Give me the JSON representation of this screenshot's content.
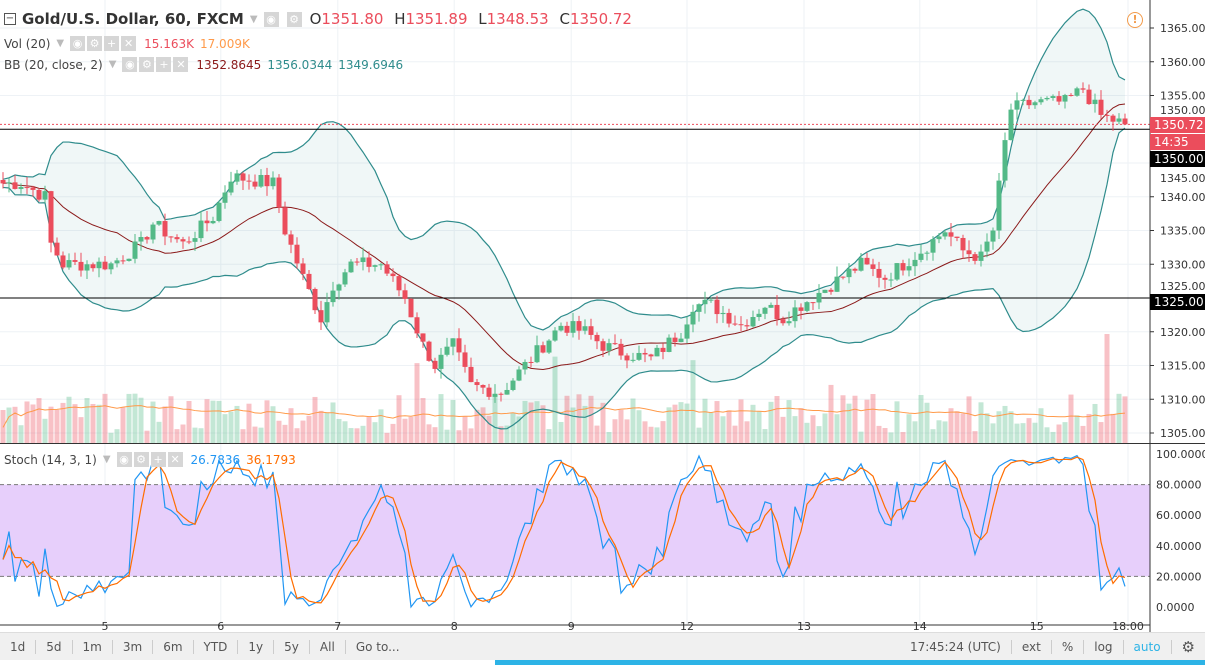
{
  "symbol": {
    "title": "Gold/U.S. Dollar, 60, FXCM",
    "open_label": "O",
    "open": "1351.80",
    "high_label": "H",
    "high": "1351.89",
    "low_label": "L",
    "low": "1348.53",
    "close_label": "C",
    "close": "1350.72"
  },
  "indicators": {
    "vol": {
      "label": "Vol (20)",
      "v1": "15.163K",
      "v2": "17.009K"
    },
    "bb": {
      "label": "BB (20, close, 2)",
      "basis": "1352.8645",
      "upper": "1356.0344",
      "lower": "1349.6946"
    },
    "stoch": {
      "label": "Stoch (14, 3, 1)",
      "k": "26.7836",
      "d": "36.1793"
    }
  },
  "price_axis": {
    "ticks": [
      "1365.00",
      "1360.00",
      "1355.00",
      "1350.00",
      "1345.00",
      "1340.00",
      "1335.00",
      "1330.00",
      "1325.00",
      "1320.00",
      "1315.00",
      "1310.00",
      "1305.00"
    ],
    "values": [
      1365,
      1360,
      1355,
      1350,
      1345,
      1340,
      1335,
      1330,
      1325,
      1320,
      1315,
      1310,
      1305
    ],
    "current_price": "1350.72",
    "countdown": "14:35",
    "hline1": "1350.00",
    "hline2": "1325.00"
  },
  "stoch_axis": {
    "ticks": [
      "100.0000",
      "80.0000",
      "60.0000",
      "40.0000",
      "20.0000",
      "0.0000"
    ],
    "values": [
      100,
      80,
      60,
      40,
      20,
      0
    ]
  },
  "time_axis": [
    {
      "label": "5",
      "bar": 17
    },
    {
      "label": "6",
      "bar": 36.3
    },
    {
      "label": "7",
      "bar": 55.8
    },
    {
      "label": "8",
      "bar": 75.2
    },
    {
      "label": "9",
      "bar": 94.7
    },
    {
      "label": "12",
      "bar": 114
    },
    {
      "label": "13",
      "bar": 133.5
    },
    {
      "label": "14",
      "bar": 152.8
    },
    {
      "label": "15",
      "bar": 172.3
    },
    {
      "label": "18:00",
      "bar": 187.5
    }
  ],
  "price_anchors": [
    [
      0,
      1342
    ],
    [
      3,
      1342
    ],
    [
      7,
      1340
    ],
    [
      8,
      1333
    ],
    [
      10,
      1330
    ],
    [
      18,
      1330
    ],
    [
      23,
      1333
    ],
    [
      25,
      1336
    ],
    [
      30,
      1333
    ],
    [
      35,
      1337
    ],
    [
      38,
      1343
    ],
    [
      45,
      1342
    ],
    [
      47,
      1335
    ],
    [
      50,
      1328
    ],
    [
      53,
      1322
    ],
    [
      55,
      1327
    ],
    [
      58,
      1330
    ],
    [
      63,
      1330
    ],
    [
      67,
      1325
    ],
    [
      70,
      1318
    ],
    [
      72,
      1315
    ],
    [
      75,
      1318
    ],
    [
      78,
      1312
    ],
    [
      83,
      1311
    ],
    [
      87,
      1315
    ],
    [
      90,
      1318
    ],
    [
      93,
      1321
    ],
    [
      97,
      1320
    ],
    [
      100,
      1318
    ],
    [
      103,
      1317
    ],
    [
      108,
      1316
    ],
    [
      113,
      1320
    ],
    [
      115,
      1324
    ],
    [
      118,
      1324
    ],
    [
      123,
      1321
    ],
    [
      127,
      1324
    ],
    [
      130,
      1322
    ],
    [
      133,
      1324
    ],
    [
      138,
      1327
    ],
    [
      143,
      1330
    ],
    [
      147,
      1328
    ],
    [
      150,
      1330
    ],
    [
      153,
      1332
    ],
    [
      157,
      1335
    ],
    [
      160,
      1332
    ],
    [
      163,
      1331
    ],
    [
      165,
      1335
    ],
    [
      167,
      1348
    ],
    [
      168,
      1353
    ],
    [
      172,
      1354
    ],
    [
      177,
      1354
    ],
    [
      180,
      1356
    ],
    [
      183,
      1352
    ],
    [
      187,
      1350.72
    ]
  ],
  "colors": {
    "up": "#53b987",
    "down": "#eb4d5c",
    "bb": "#2f8c8c",
    "basis": "#8b1a1a",
    "k": "#2196f3",
    "d": "#ff6d00",
    "stoch_band": "#e7cffb"
  },
  "bottom_bar": {
    "ranges": [
      "1d",
      "5d",
      "1m",
      "3m",
      "6m",
      "YTD",
      "1y",
      "5y",
      "All"
    ],
    "goto": "Go to...",
    "clock": "17:45:24 (UTC)",
    "ext": "ext",
    "pct": "%",
    "log": "log",
    "auto": "auto"
  }
}
